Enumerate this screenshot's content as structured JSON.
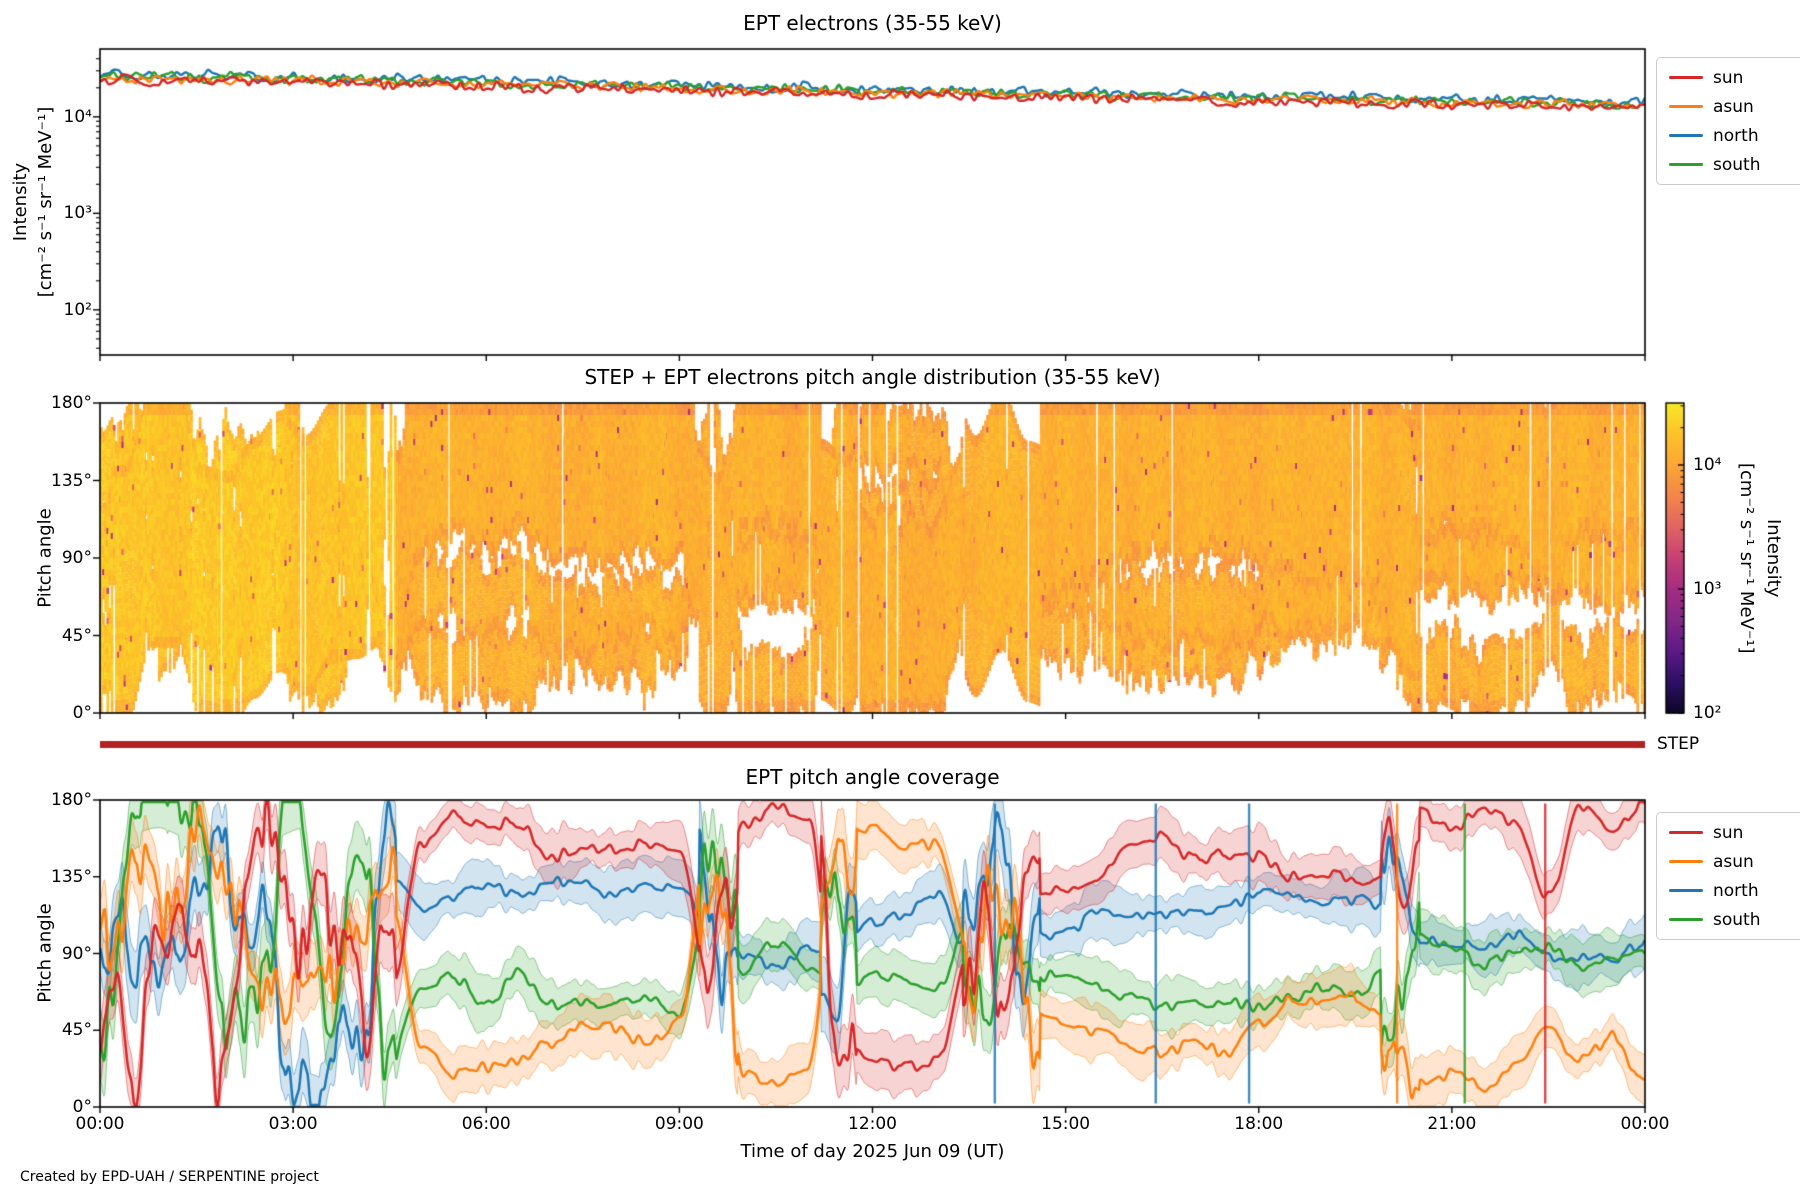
{
  "figure": {
    "xlabel": "Time of day 2025 Jun 09 (UT)",
    "footer": "Created by EPD-UAH / SERPENTINE project",
    "x_tick_hours": [
      0,
      3,
      6,
      9,
      12,
      15,
      18,
      21,
      24
    ],
    "x_tick_labels": [
      "00:00",
      "03:00",
      "06:00",
      "09:00",
      "12:00",
      "15:00",
      "18:00",
      "21:00",
      "00:00"
    ]
  },
  "colors": {
    "sun": "#d62728",
    "asun": "#ff7f0e",
    "north": "#1f77b4",
    "south": "#2ca02c",
    "step_bar": "#b22222",
    "frame": "#000000",
    "legend_border": "#cccccc"
  },
  "step_bar": {
    "label": "STEP"
  },
  "chart_data": [
    {
      "type": "line",
      "title": "EPT electrons (35-55 keV)",
      "ylabel_lines": [
        "Intensity",
        "[cm⁻² s⁻¹ sr⁻¹ MeV⁻¹]"
      ],
      "yscale": "log",
      "ylim": [
        34,
        50000
      ],
      "y_ticks": [
        {
          "value": 10000,
          "label": "10⁴"
        },
        {
          "value": 1000,
          "label": "10³"
        },
        {
          "value": 100,
          "label": "10²"
        }
      ],
      "x_keyframe_step_hours": 1,
      "xlim_hours": [
        0,
        24
      ],
      "legend_position": "outside-right",
      "series": [
        {
          "name": "sun",
          "color": "#d62728",
          "values": [
            24200,
            23700,
            23300,
            22600,
            22100,
            21400,
            20800,
            20100,
            19500,
            18900,
            18300,
            17700,
            17100,
            16600,
            16100,
            15600,
            15200,
            14700,
            14300,
            14000,
            13600,
            13300,
            13000,
            12700,
            12500
          ]
        },
        {
          "name": "asun",
          "color": "#ff7f0e",
          "values": [
            25200,
            24700,
            24200,
            23600,
            23000,
            22300,
            21600,
            21000,
            20400,
            19700,
            19000,
            18400,
            17900,
            17300,
            16800,
            16300,
            15800,
            15300,
            14900,
            14600,
            14200,
            13800,
            13500,
            13200,
            13000
          ]
        },
        {
          "name": "north",
          "color": "#1f77b4",
          "values": [
            27500,
            27000,
            26400,
            25700,
            25100,
            24300,
            23600,
            22900,
            22200,
            21500,
            20800,
            20100,
            19500,
            18900,
            18300,
            17800,
            17300,
            16700,
            16300,
            15900,
            15500,
            15100,
            14700,
            14400,
            14200
          ]
        },
        {
          "name": "south",
          "color": "#2ca02c",
          "values": [
            26500,
            26000,
            25500,
            24800,
            24200,
            23400,
            22700,
            22000,
            21400,
            20700,
            20000,
            19400,
            18800,
            18200,
            17600,
            17100,
            16600,
            16100,
            15700,
            15300,
            14900,
            14500,
            14200,
            13900,
            13700
          ]
        }
      ]
    },
    {
      "type": "heatmap",
      "title": "STEP + EPT electrons pitch angle distribution (35-55 keV)",
      "ylabel": "Pitch angle",
      "ylim": [
        0,
        180
      ],
      "y_ticks": [
        {
          "value": 180,
          "label": "180°"
        },
        {
          "value": 135,
          "label": "135°"
        },
        {
          "value": 90,
          "label": "90°"
        },
        {
          "value": 45,
          "label": "45°"
        },
        {
          "value": 0,
          "label": "0°"
        }
      ],
      "colorbar": {
        "label_lines": [
          "Intensity",
          "[cm⁻² s⁻¹ sr⁻¹ MeV⁻¹]"
        ],
        "log_range": [
          2,
          4.5
        ],
        "ticks": [
          {
            "value": 10000,
            "label": "10⁴"
          },
          {
            "value": 1000,
            "label": "10³"
          },
          {
            "value": 100,
            "label": "10²"
          }
        ],
        "colormap_stops": [
          [
            0.0,
            "#0b0724"
          ],
          [
            0.1,
            "#2d0f64"
          ],
          [
            0.2,
            "#5c1a86"
          ],
          [
            0.3,
            "#822886"
          ],
          [
            0.4,
            "#a42c82"
          ],
          [
            0.5,
            "#c53f74"
          ],
          [
            0.6,
            "#e16462"
          ],
          [
            0.7,
            "#f4854b"
          ],
          [
            0.8,
            "#fca636"
          ],
          [
            0.9,
            "#fdc229"
          ],
          [
            1.0,
            "#f7e825"
          ]
        ]
      },
      "coverage": {
        "band_extra_halfwidth_deg": 8,
        "step_band_halfwidth_deg": 60,
        "base_log_intensity": 4.1,
        "early_log_intensity": 4.28,
        "early_until_hour": 4.6,
        "cell_log_jitter": 0.09,
        "speck_probability": 0.012,
        "column_gap_probability": 0.03,
        "band_dropout_probability": 0.06
      }
    },
    {
      "type": "line-with-bands",
      "title": "EPT pitch angle coverage",
      "ylabel": "Pitch angle",
      "ylim": [
        0,
        180
      ],
      "y_ticks": [
        {
          "value": 180,
          "label": "180°"
        },
        {
          "value": 135,
          "label": "135°"
        },
        {
          "value": 90,
          "label": "90°"
        },
        {
          "value": 45,
          "label": "45°"
        },
        {
          "value": 0,
          "label": "0°"
        }
      ],
      "x_keyframe_step_hours": 0.5,
      "band_halfwidth_deg": 14,
      "chaos_windows": [
        [
          0,
          4.6
        ],
        [
          9.3,
          9.9
        ],
        [
          11.2,
          11.75
        ],
        [
          13.4,
          14.6
        ],
        [
          19.9,
          20.5
        ]
      ],
      "chaos_extra_amplitude_deg": 50,
      "spikes": [
        {
          "hour": 13.9,
          "series": "north"
        },
        {
          "hour": 16.4,
          "series": "north"
        },
        {
          "hour": 17.85,
          "series": "north"
        },
        {
          "hour": 20.15,
          "series": "asun"
        },
        {
          "hour": 21.2,
          "series": "south"
        },
        {
          "hour": 22.45,
          "series": "sun"
        }
      ],
      "series": [
        {
          "name": "sun",
          "color": "#d62728",
          "centers": [
            35,
            40,
            130,
            60,
            35,
            130,
            120,
            135,
            90,
            60,
            155,
            165,
            160,
            170,
            150,
            145,
            150,
            155,
            150,
            60,
            170,
            175,
            170,
            40,
            30,
            28,
            30,
            90,
            60,
            120,
            125,
            130,
            150,
            155,
            150,
            155,
            140,
            135,
            132,
            130,
            135,
            170,
            170,
            175,
            165,
            120,
            170,
            160,
            175
          ]
        },
        {
          "name": "asun",
          "color": "#ff7f0e",
          "centers": [
            145,
            140,
            110,
            140,
            95,
            60,
            70,
            110,
            95,
            120,
            35,
            25,
            30,
            25,
            40,
            45,
            40,
            35,
            45,
            170,
            20,
            15,
            20,
            165,
            160,
            158,
            155,
            95,
            130,
            55,
            50,
            45,
            40,
            38,
            40,
            35,
            50,
            58,
            60,
            62,
            55,
            20,
            25,
            15,
            25,
            45,
            20,
            35,
            20
          ]
        },
        {
          "name": "north",
          "color": "#1f77b4",
          "centers": [
            95,
            120,
            40,
            95,
            150,
            130,
            30,
            20,
            60,
            130,
            120,
            125,
            130,
            120,
            130,
            135,
            130,
            125,
            130,
            100,
            90,
            85,
            95,
            100,
            110,
            118,
            120,
            85,
            110,
            105,
            95,
            110,
            115,
            118,
            115,
            112,
            120,
            122,
            125,
            123,
            110,
            95,
            92,
            90,
            95,
            90,
            92,
            88,
            90
          ]
        },
        {
          "name": "south",
          "color": "#2ca02c",
          "centers": [
            85,
            160,
            175,
            150,
            40,
            90,
            170,
            60,
            140,
            30,
            75,
            70,
            65,
            75,
            60,
            55,
            60,
            65,
            60,
            130,
            85,
            90,
            80,
            70,
            75,
            72,
            75,
            100,
            80,
            75,
            80,
            70,
            62,
            60,
            62,
            58,
            65,
            68,
            70,
            68,
            80,
            95,
            90,
            88,
            92,
            95,
            88,
            85,
            88
          ]
        }
      ]
    }
  ]
}
